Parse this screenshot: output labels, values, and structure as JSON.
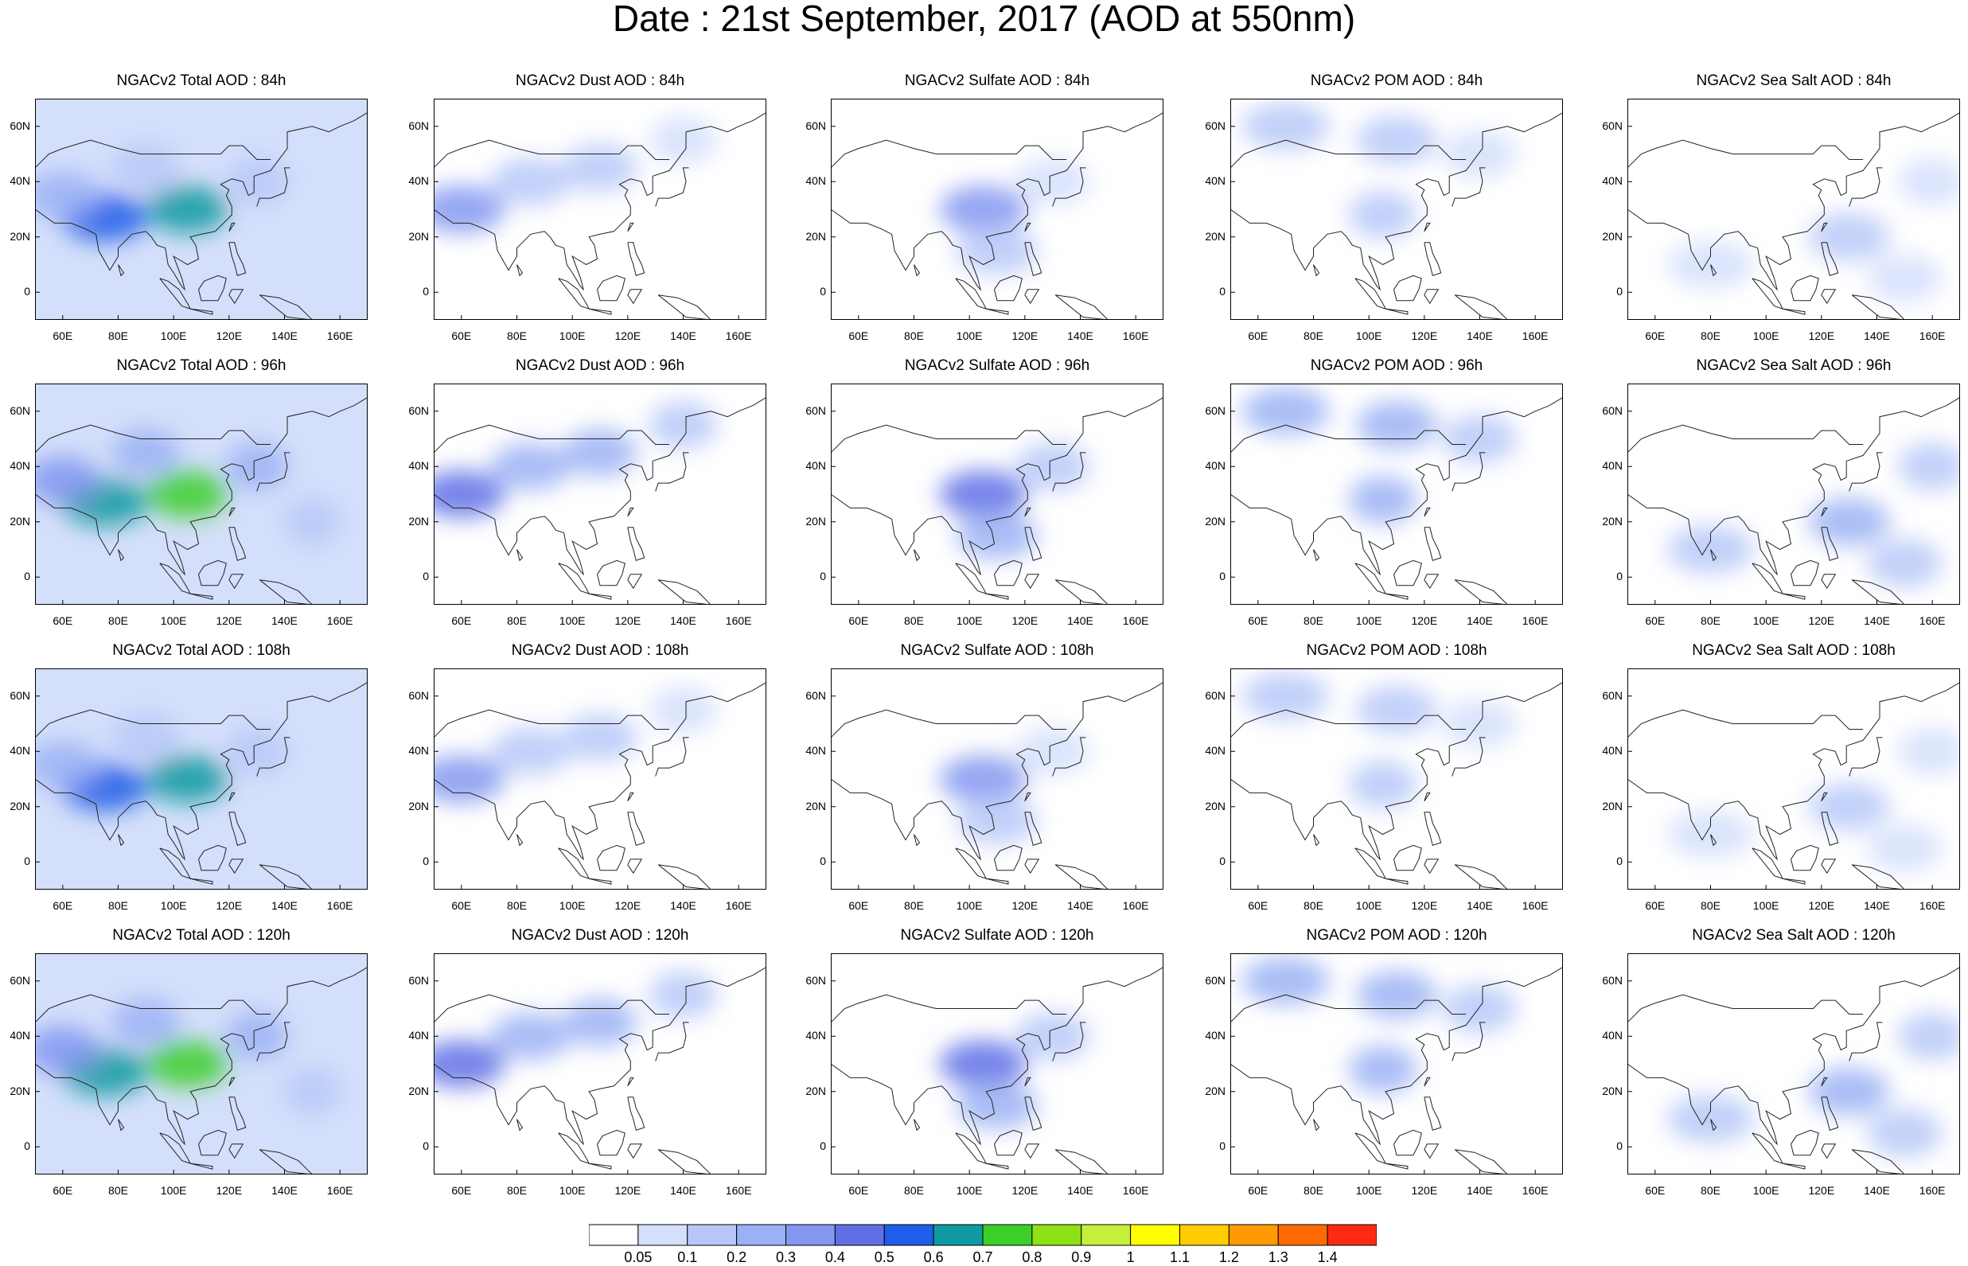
{
  "title": "Date : 21st September, 2017 (AOD at 550nm)",
  "axes": {
    "lat_ticks": [
      "60N",
      "40N",
      "20N",
      "0"
    ],
    "lat_values": [
      60,
      40,
      20,
      0
    ],
    "lon_ticks": [
      "60E",
      "80E",
      "100E",
      "120E",
      "140E",
      "160E"
    ],
    "lon_values": [
      60,
      80,
      100,
      120,
      140,
      160
    ],
    "lon_range": [
      50,
      170
    ],
    "lat_range": [
      -10,
      70
    ]
  },
  "panel_titles": [
    [
      "NGACv2 Total AOD : 84h",
      "NGACv2 Dust AOD : 84h",
      "NGACv2 Sulfate AOD : 84h",
      "NGACv2 POM AOD : 84h",
      "NGACv2 Sea Salt AOD : 84h"
    ],
    [
      "NGACv2 Total AOD : 96h",
      "NGACv2 Dust AOD : 96h",
      "NGACv2 Sulfate AOD : 96h",
      "NGACv2 POM AOD : 96h",
      "NGACv2 Sea Salt AOD : 96h"
    ],
    [
      "NGACv2 Total AOD : 108h",
      "NGACv2 Dust AOD : 108h",
      "NGACv2 Sulfate AOD : 108h",
      "NGACv2 POM AOD : 108h",
      "NGACv2 Sea Salt AOD : 108h"
    ],
    [
      "NGACv2 Total AOD : 120h",
      "NGACv2 Dust AOD : 120h",
      "NGACv2 Sulfate AOD : 120h",
      "NGACv2 POM AOD : 120h",
      "NGACv2 Sea Salt  AOD : 120h"
    ]
  ],
  "colorbar": {
    "labels": [
      "0.05",
      "0.1",
      "0.2",
      "0.3",
      "0.4",
      "0.5",
      "0.6",
      "0.7",
      "0.8",
      "0.9",
      "1",
      "1.1",
      "1.2",
      "1.3",
      "1.4"
    ],
    "colors": [
      "#ffffff",
      "#d4dffb",
      "#b7c8f8",
      "#9bb1f5",
      "#8397f0",
      "#5f70e6",
      "#1f5ee8",
      "#0e9aa0",
      "#3ccf2a",
      "#8fe014",
      "#c5ef3a",
      "#ffff00",
      "#ffcc00",
      "#ff9a00",
      "#ff6a00",
      "#ff2a14"
    ]
  },
  "fields": {
    "total": [
      {
        "lon": 75,
        "lat": 27,
        "level": 6
      },
      {
        "lon": 105,
        "lat": 30,
        "level": 7
      },
      {
        "lon": 60,
        "lat": 35,
        "level": 3
      },
      {
        "lon": 90,
        "lat": 45,
        "level": 2
      },
      {
        "lon": 130,
        "lat": 40,
        "level": 2
      },
      {
        "lon": 150,
        "lat": 20,
        "level": 1
      }
    ],
    "dust": [
      {
        "lon": 60,
        "lat": 30,
        "level": 4
      },
      {
        "lon": 85,
        "lat": 40,
        "level": 2
      },
      {
        "lon": 110,
        "lat": 45,
        "level": 2
      },
      {
        "lon": 140,
        "lat": 55,
        "level": 1
      }
    ],
    "sulfate": [
      {
        "lon": 105,
        "lat": 30,
        "level": 4
      },
      {
        "lon": 110,
        "lat": 15,
        "level": 2
      },
      {
        "lon": 130,
        "lat": 40,
        "level": 1
      }
    ],
    "pom": [
      {
        "lon": 70,
        "lat": 60,
        "level": 2
      },
      {
        "lon": 110,
        "lat": 55,
        "level": 2
      },
      {
        "lon": 140,
        "lat": 50,
        "level": 1
      },
      {
        "lon": 105,
        "lat": 28,
        "level": 2
      }
    ],
    "seasalt": [
      {
        "lon": 80,
        "lat": 10,
        "level": 1
      },
      {
        "lon": 130,
        "lat": 20,
        "level": 2
      },
      {
        "lon": 150,
        "lat": 5,
        "level": 1
      },
      {
        "lon": 160,
        "lat": 40,
        "level": 1
      }
    ]
  }
}
